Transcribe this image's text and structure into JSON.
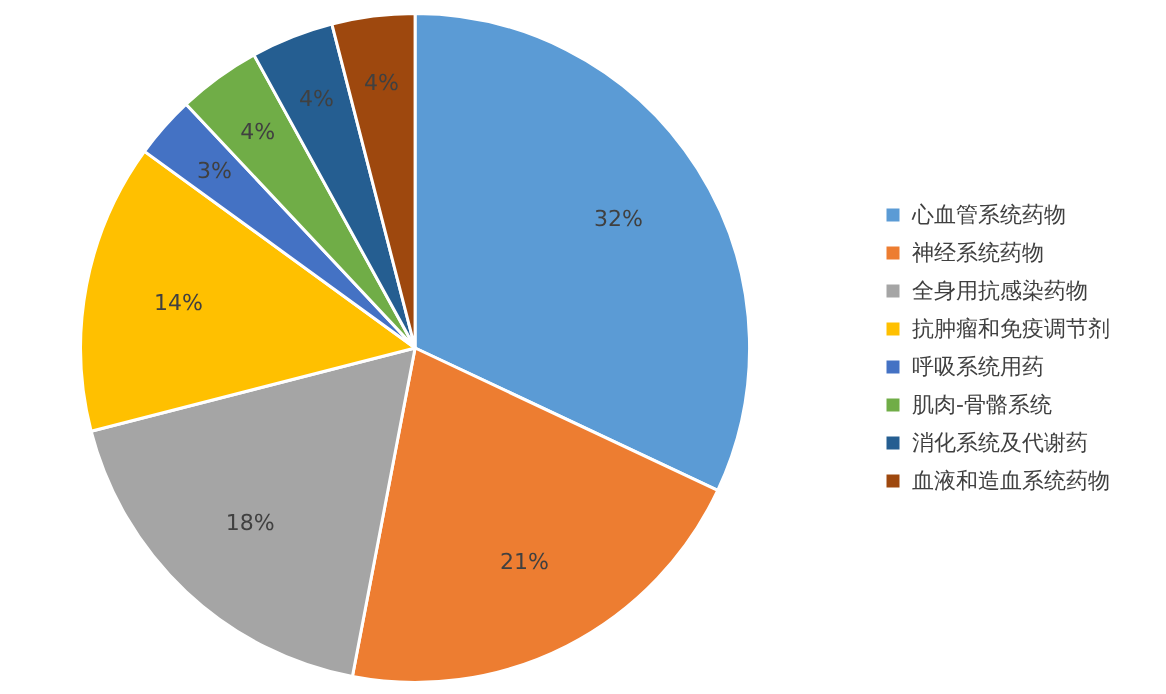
{
  "chart_data": {
    "type": "pie",
    "categories": [
      "心血管系统药物",
      "神经系统药物",
      "全身用抗感染药物",
      "抗肿瘤和免疫调节剂",
      "呼吸系统用药",
      "肌肉-骨骼系统",
      "消化系统及代谢药",
      "血液和造血系统药物"
    ],
    "values": [
      32,
      21,
      18,
      14,
      3,
      4,
      4,
      4
    ],
    "value_labels": [
      "32%",
      "21%",
      "18%",
      "14%",
      "3%",
      "4%",
      "4%",
      "4%"
    ],
    "colors": [
      "#5b9bd5",
      "#ed7d31",
      "#a5a5a5",
      "#ffc000",
      "#4472c4",
      "#70ad47",
      "#255e91",
      "#9e480e"
    ],
    "legend": "right"
  }
}
